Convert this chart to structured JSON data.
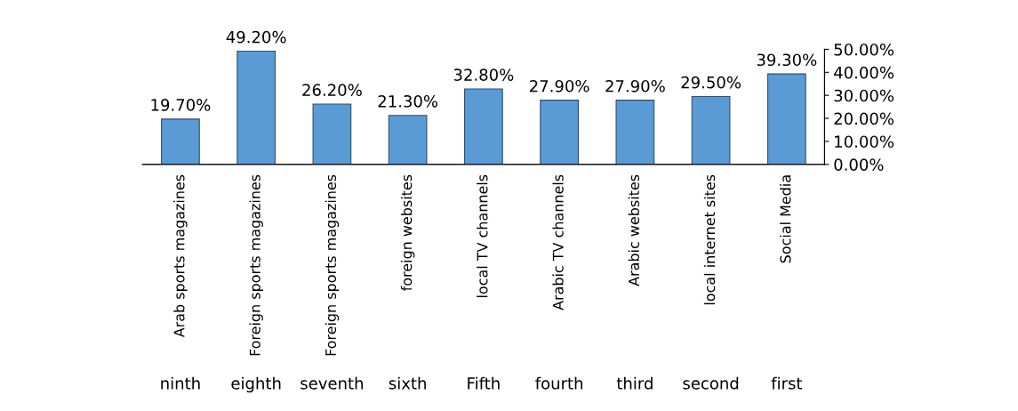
{
  "chart_data": {
    "type": "bar",
    "categories": [
      "ninth",
      "eighth",
      "seventh",
      "sixth",
      "Fifth",
      "fourth",
      "third",
      "second",
      "first"
    ],
    "series": [
      {
        "color": "#5b9bd5",
        "axis": "y2",
        "values": [
          19.7,
          49.2,
          26.2,
          21.3,
          32.8,
          27.9,
          27.9,
          29.5,
          39.3
        ],
        "value_labels": [
          "19.70%",
          "49.20%",
          "26.20%",
          "21.30%",
          "32.80%",
          "27.90%",
          "27.90%",
          "29.50%",
          "39.30%"
        ]
      }
    ],
    "y2lim": [
      0,
      50
    ],
    "y2ticks": [
      {
        "value": 0,
        "label": "0.00%"
      },
      {
        "value": 10,
        "label": "10.00%"
      },
      {
        "value": 20,
        "label": "20.00%"
      },
      {
        "value": 30,
        "label": "30.00%"
      },
      {
        "value": 40,
        "label": "40.00%"
      },
      {
        "value": 50,
        "label": "50.00%"
      }
    ],
    "annotations": [
      "Arab sports magazines",
      "Foreign sports magazines",
      "Foreign sports magazines",
      "foreign websites",
      "local TV channels",
      "Arabic TV channels",
      "Arabic websites",
      "local internet sites",
      "Social Media"
    ],
    "grid": false,
    "legend": false
  }
}
